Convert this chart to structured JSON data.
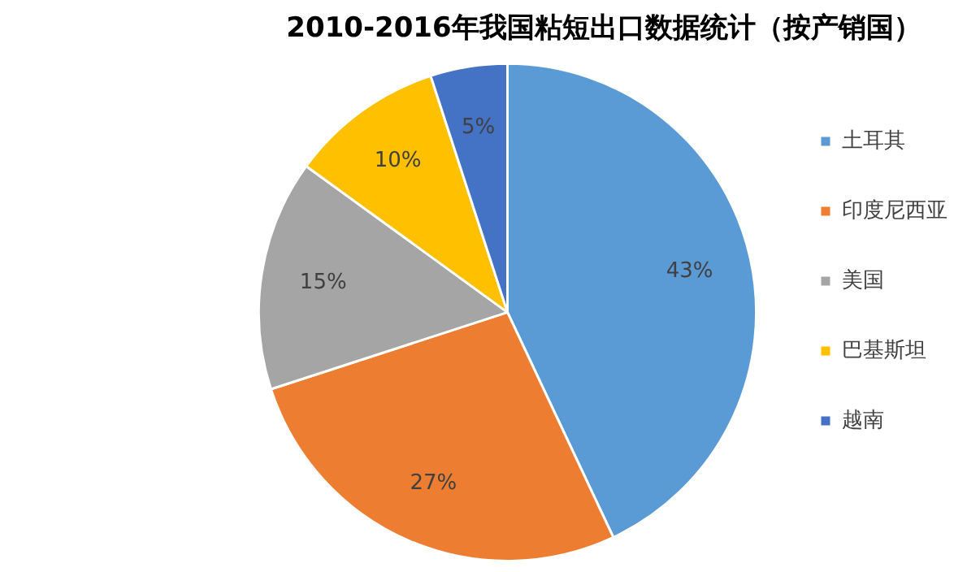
{
  "chart_data": {
    "type": "pie",
    "title": "2010-2016年我国粘短出口数据统计（按产销国）",
    "categories": [
      "土耳其",
      "印度尼西亚",
      "美国",
      "巴基斯坦",
      "越南"
    ],
    "values": [
      43,
      27,
      15,
      10,
      5
    ],
    "colors": [
      "#5b9bd5",
      "#ed7d31",
      "#a5a5a5",
      "#ffc000",
      "#4472c4"
    ],
    "value_labels": [
      "43%",
      "27%",
      "15%",
      "10%",
      "5%"
    ],
    "legend": "right"
  }
}
